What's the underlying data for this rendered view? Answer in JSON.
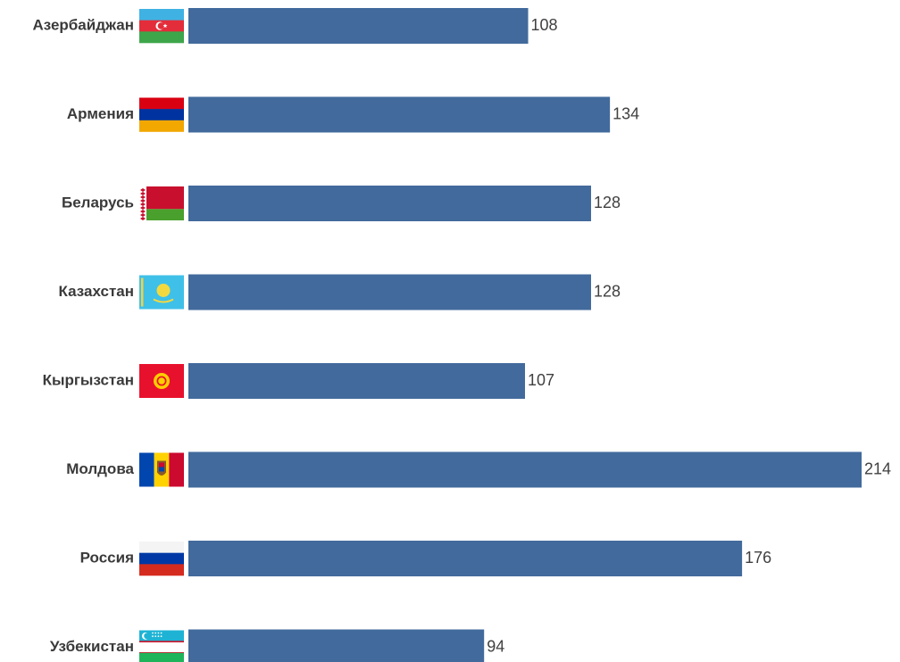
{
  "colors": {
    "bar": "#426a9c",
    "label": "#3a3a3a",
    "value": "#404040"
  },
  "chart_data": {
    "type": "bar",
    "orientation": "horizontal",
    "title": "",
    "xlabel": "",
    "ylabel": "",
    "grid": false,
    "categories": [
      "Азербайджан",
      "Армения",
      "Беларусь",
      "Казахстан",
      "Кыргызстан",
      "Молдова",
      "Россия",
      "Узбекистан"
    ],
    "values": [
      108,
      134,
      128,
      128,
      107,
      214,
      176,
      94
    ],
    "flags": [
      "azerbaijan-flag-icon",
      "armenia-flag-icon",
      "belarus-flag-icon",
      "kazakhstan-flag-icon",
      "kyrgyzstan-flag-icon",
      "moldova-flag-icon",
      "russia-flag-icon",
      "uzbekistan-flag-icon"
    ],
    "xlim": [
      0,
      214
    ]
  }
}
